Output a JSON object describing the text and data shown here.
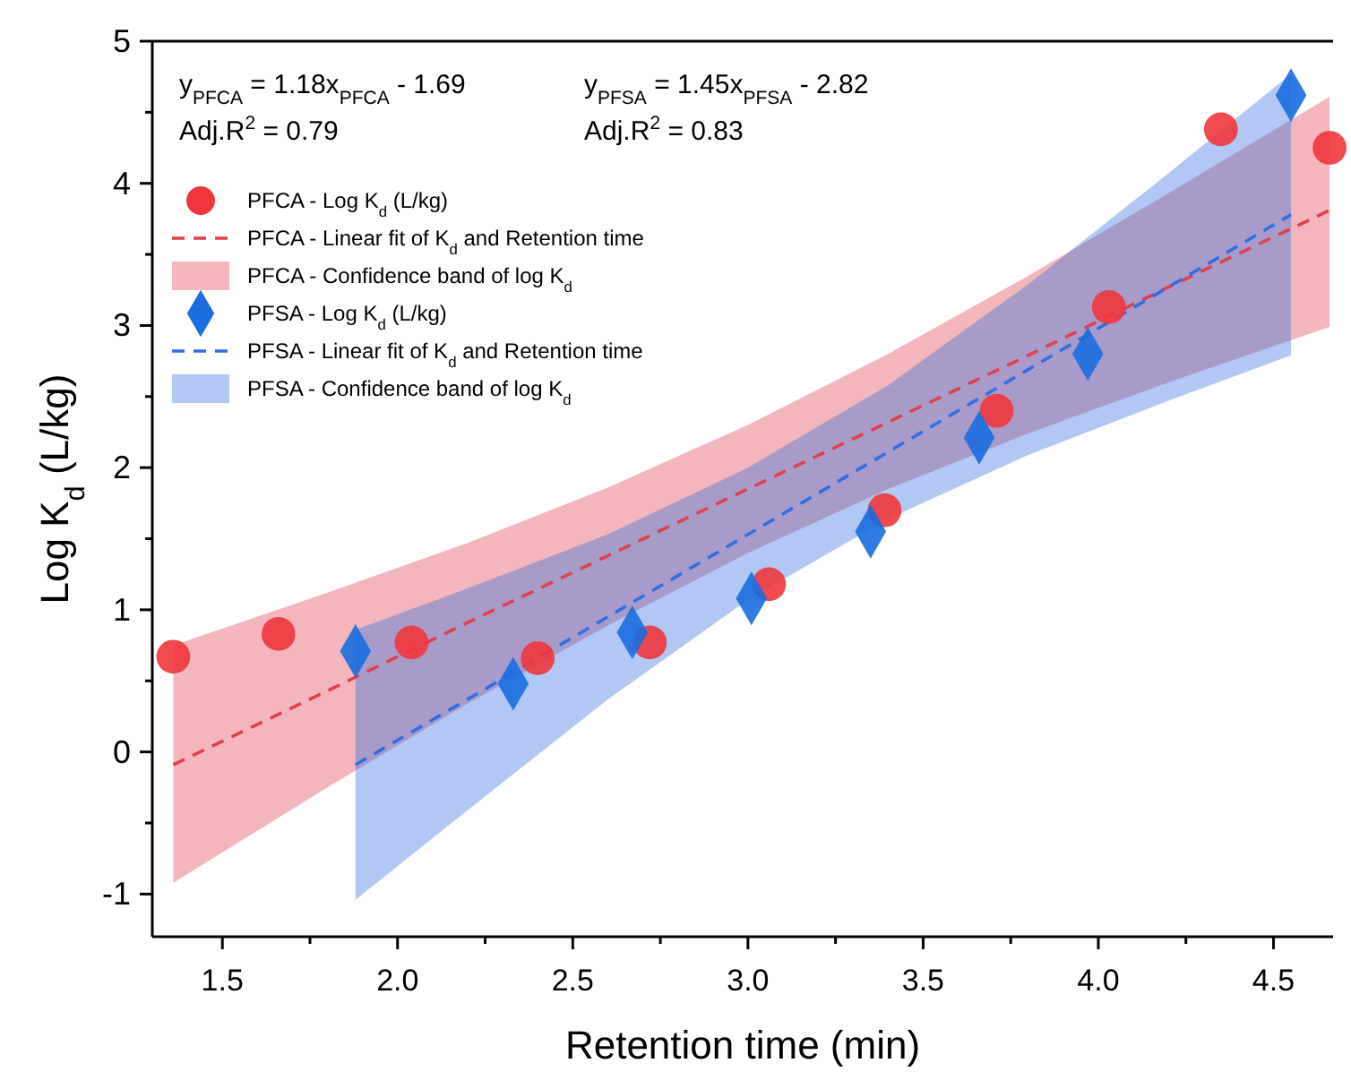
{
  "chart_data": {
    "type": "scatter",
    "xlabel": "Retention time (min)",
    "ylabel": "Log K$_{d}$ (L/kg)",
    "annotations": [
      "y$_{PFCA}$ = 1.18x$_{PFCA}$ - 1.69",
      "Adj.R$^{2}$ = 0.79",
      "y$_{PFSA}$ = 1.45x$_{PFSA}$ - 2.82",
      "Adj.R$^{2}$ = 0.83",
      "PFCA - Confidence band of log K$_{d}$",
      "PFSA - Confidence band of log K$_{d}$"
    ],
    "xlim": [
      1.3,
      4.67
    ],
    "ylim": [
      -1.3,
      5
    ],
    "xticks": [
      1.5,
      {
        "value": 1.75,
        "label": null
      },
      {
        "value": 2,
        "label": "2.0"
      },
      {
        "value": 2.25,
        "label": null
      },
      2.5,
      {
        "value": 2.75,
        "label": null
      },
      {
        "value": 3,
        "label": "3.0"
      },
      {
        "value": 3.25,
        "label": null
      },
      3.5,
      {
        "value": 3.75,
        "label": null
      },
      {
        "value": 4,
        "label": "4.0"
      },
      {
        "value": 4.25,
        "label": null
      },
      4.5
    ],
    "yticks": [
      -1,
      {
        "value": -0.5,
        "label": null
      },
      0,
      {
        "value": 0.5,
        "label": null
      },
      1,
      {
        "value": 1.5,
        "label": null
      },
      2,
      {
        "value": 2.5,
        "label": null
      },
      3,
      {
        "value": 3.5,
        "label": null
      },
      4,
      {
        "value": 4.5,
        "label": null
      },
      5
    ],
    "legend": "top left",
    "grid": false,
    "series": [
      {
        "name": "PFCA - Log K$_{d}$ (L/kg)",
        "marker": "circle",
        "color": "#f0363c",
        "x": [
          1.36,
          1.66,
          2.04,
          2.4,
          2.72,
          3.06,
          3.39,
          3.71,
          4.03,
          4.35,
          4.66
        ],
        "values": [
          0.67,
          0.83,
          0.77,
          0.66,
          0.77,
          1.18,
          1.7,
          2.4,
          3.13,
          4.38,
          4.25
        ]
      },
      {
        "name": "PFCA - Linear fit of K$_{d}$ and Retention time",
        "type": "line",
        "line_style": "dashed",
        "color": "#e0404e",
        "x": [
          1.36,
          1.8,
          2.2,
          2.6,
          3.0,
          3.4,
          3.8,
          4.2,
          4.66
        ],
        "values": [
          -0.09,
          0.43,
          0.91,
          1.38,
          1.85,
          2.32,
          2.79,
          3.27,
          3.81
        ],
        "lower": [
          -0.92,
          -0.25,
          0.34,
          0.89,
          1.4,
          1.85,
          2.24,
          2.6,
          2.99
        ],
        "upper": [
          0.75,
          1.12,
          1.47,
          1.86,
          2.3,
          2.8,
          3.35,
          3.93,
          4.61
        ]
      },
      {
        "name": "PFSA - Log K$_{d}$ (L/kg)",
        "marker": "diamond",
        "color": "#1a6de0",
        "x": [
          1.88,
          2.33,
          2.67,
          3.01,
          3.35,
          3.66,
          3.97,
          4.55
        ],
        "values": [
          0.71,
          0.48,
          0.84,
          1.08,
          1.55,
          2.21,
          2.8,
          4.62
        ]
      },
      {
        "name": "PFSA - Linear fit of K$_{d}$ and Retention time",
        "type": "line",
        "line_style": "dashed",
        "color": "#2f6fe0",
        "x": [
          1.88,
          2.2,
          2.6,
          3.0,
          3.4,
          3.8,
          4.2,
          4.55
        ],
        "values": [
          -0.09,
          0.37,
          0.95,
          1.53,
          2.11,
          2.69,
          3.27,
          3.78
        ],
        "lower": [
          -1.04,
          -0.41,
          0.37,
          1.07,
          1.64,
          2.09,
          2.47,
          2.79
        ],
        "upper": [
          0.86,
          1.15,
          1.53,
          2.0,
          2.58,
          3.29,
          4.07,
          4.77
        ]
      }
    ]
  }
}
